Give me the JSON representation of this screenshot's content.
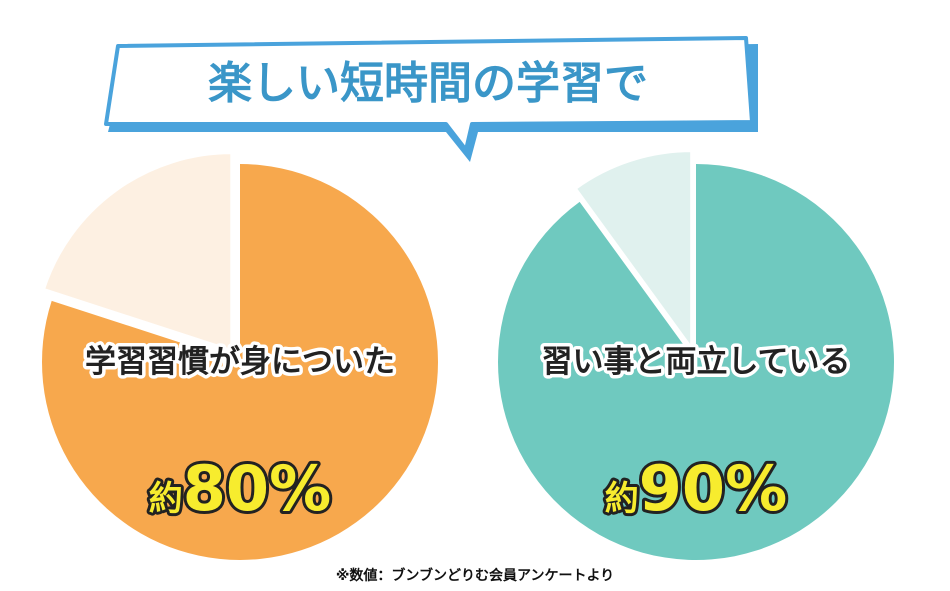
{
  "headline": "楽しい短時間の学習で",
  "footnote": "※数値：ブンブンどりむ会員アンケートより",
  "colors": {
    "headline_text": "#3a96c8",
    "bubble_border": "#4aa3dc",
    "bubble_fill": "#ffffff",
    "value_text": "#f7ec2e",
    "label_outline": "#ffffff",
    "text_dark": "#222222"
  },
  "chart_data": [
    {
      "type": "pie",
      "label": "学習習慣が身についた",
      "value_prefix": "約",
      "value_text": "80%",
      "value": 80,
      "color": "#f7a84d",
      "remainder_color": "#fdf0e2"
    },
    {
      "type": "pie",
      "label": "習い事と両立している",
      "value_prefix": "約",
      "value_text": "90%",
      "value": 90,
      "color": "#6fc9bf",
      "remainder_color": "#e0f1ee"
    }
  ]
}
